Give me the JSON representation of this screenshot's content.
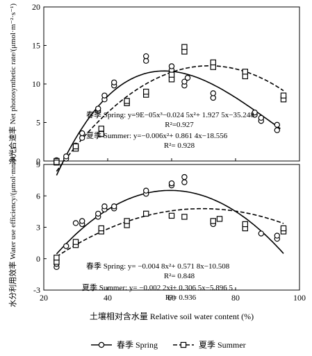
{
  "chart_data": [
    {
      "type": "scatter",
      "ylabel": "净光合速率 Net photosynthetic rate/(μmol·m⁻²·s⁻¹)",
      "ylim": [
        0,
        20
      ],
      "yticks": [
        0,
        5,
        10,
        15,
        20
      ],
      "xlim": [
        20,
        100
      ],
      "series": [
        {
          "name": "春季 Spring",
          "marker": "circle",
          "linestyle": "solid",
          "points": [
            [
              24,
              0.1
            ],
            [
              24,
              -0.1
            ],
            [
              27,
              0.3
            ],
            [
              27,
              0.6
            ],
            [
              30,
              1.7
            ],
            [
              30,
              2.0
            ],
            [
              32,
              3.0
            ],
            [
              32,
              3.6
            ],
            [
              37,
              6.5
            ],
            [
              37,
              6.8
            ],
            [
              39,
              8.0
            ],
            [
              39,
              8.5
            ],
            [
              42,
              9.8
            ],
            [
              42,
              10.2
            ],
            [
              52,
              13.0
            ],
            [
              52,
              13.6
            ],
            [
              60,
              11.8
            ],
            [
              60,
              12.3
            ],
            [
              64,
              9.8
            ],
            [
              64,
              10.3
            ],
            [
              65,
              10.8
            ],
            [
              73,
              8.2
            ],
            [
              73,
              8.8
            ],
            [
              86,
              6.0
            ],
            [
              86,
              6.3
            ],
            [
              88,
              5.2
            ],
            [
              88,
              5.6
            ],
            [
              93,
              4.0
            ],
            [
              93,
              4.7
            ]
          ],
          "fit": {
            "a3": 9e-05,
            "a2": -0.0245,
            "a1": 1.9275,
            "a0": -35.248,
            "x_range": [
              24,
              94
            ]
          },
          "equation": "春季 Spring: y=9E−05x³−0.024 5x²+ 1.927 5x−35.248",
          "r2": "R²=0.927"
        },
        {
          "name": "夏季 Summer",
          "marker": "square",
          "linestyle": "dashed",
          "points": [
            [
              24,
              0.0
            ],
            [
              24,
              -0.2
            ],
            [
              30,
              1.6
            ],
            [
              30,
              1.9
            ],
            [
              38,
              3.5
            ],
            [
              38,
              4.2
            ],
            [
              46,
              7.5
            ],
            [
              46,
              7.8
            ],
            [
              52,
              8.6
            ],
            [
              52,
              9.0
            ],
            [
              60,
              10.6
            ],
            [
              60,
              11.2
            ],
            [
              64,
              14.2
            ],
            [
              64,
              14.8
            ],
            [
              73,
              12.2
            ],
            [
              73,
              12.8
            ],
            [
              83,
              11.0
            ],
            [
              83,
              11.6
            ],
            [
              95,
              8.0
            ],
            [
              95,
              8.5
            ]
          ],
          "fit": {
            "a2": -0.006,
            "a1": 0.8614,
            "a0": -18.556,
            "x_range": [
              24,
              95
            ]
          },
          "equation": "夏季 Summer: y=−0.006x²+ 0.861 4x−18.556",
          "r2": "R²= 0.928"
        }
      ]
    },
    {
      "type": "scatter",
      "ylabel": "水分利用效率 Water use efficiency/(μmol·mmol⁻¹)",
      "xlabel": "土壤相对含水量 Relative soil water content (%)",
      "ylim": [
        -3,
        9
      ],
      "yticks": [
        -3,
        0,
        3,
        6,
        9
      ],
      "xlim": [
        20,
        100
      ],
      "xticks": [
        20,
        40,
        60,
        80,
        100
      ],
      "series": [
        {
          "name": "春季 Spring",
          "marker": "circle",
          "linestyle": "solid",
          "points": [
            [
              24,
              -0.8
            ],
            [
              24,
              -0.5
            ],
            [
              24,
              -0.2
            ],
            [
              27,
              1.2
            ],
            [
              30,
              3.4
            ],
            [
              32,
              3.3
            ],
            [
              32,
              3.6
            ],
            [
              37,
              4.0
            ],
            [
              37,
              4.3
            ],
            [
              39,
              4.7
            ],
            [
              39,
              5.0
            ],
            [
              42,
              4.8
            ],
            [
              42,
              5.0
            ],
            [
              52,
              6.2
            ],
            [
              52,
              6.5
            ],
            [
              60,
              7.0
            ],
            [
              60,
              7.2
            ],
            [
              64,
              7.3
            ],
            [
              64,
              7.8
            ],
            [
              73,
              3.3
            ],
            [
              73,
              3.6
            ],
            [
              88,
              2.4
            ],
            [
              93,
              1.9
            ],
            [
              93,
              2.2
            ]
          ],
          "fit": {
            "a2": -0.0048,
            "a1": 0.5718,
            "a0": -10.508,
            "x_range": [
              24,
              95
            ]
          },
          "equation": "春季 Spring: y= −0.004 8x²+ 0.571 8x−10.508",
          "r2": "R²= 0.848"
        },
        {
          "name": "夏季 Summer",
          "marker": "square",
          "linestyle": "dashed",
          "points": [
            [
              24,
              -0.3
            ],
            [
              24,
              0.1
            ],
            [
              30,
              1.3
            ],
            [
              30,
              1.6
            ],
            [
              38,
              2.6
            ],
            [
              38,
              2.9
            ],
            [
              46,
              3.2
            ],
            [
              46,
              3.6
            ],
            [
              52,
              4.3
            ],
            [
              60,
              4.1
            ],
            [
              64,
              4.0
            ],
            [
              73,
              3.6
            ],
            [
              75,
              3.8
            ],
            [
              83,
              2.9
            ],
            [
              83,
              3.3
            ],
            [
              95,
              2.6
            ],
            [
              95,
              2.9
            ]
          ],
          "fit": {
            "a2": -0.0022,
            "a1": 0.3065,
            "a0": -5.8965,
            "x_range": [
              24,
              95
            ]
          },
          "equation": "夏季 Summer: y= −0.002 2x²+ 0.306 5x−5.896 5",
          "r2": "R²= 0.936"
        }
      ]
    }
  ],
  "legend": {
    "items": [
      {
        "label": "春季 Spring",
        "marker": "circle",
        "linestyle": "solid"
      },
      {
        "label": "夏季 Summer",
        "marker": "square",
        "linestyle": "dashed"
      }
    ],
    "placement": "bottom-center"
  }
}
